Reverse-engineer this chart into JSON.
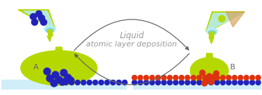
{
  "title_line1": "Liquid",
  "title_line2": "atomic layer deposition",
  "title_color": "#999999",
  "title_fontsize": 8.5,
  "bg_color": "#ffffff",
  "label_A": "A",
  "label_B": "B",
  "label_fontsize": 8,
  "label_color": "#666666",
  "substrate_color": "#d0eef8",
  "green_color": "#b5d800",
  "green_dark": "#8ab000",
  "blue_dot_color": "#2222bb",
  "red_dot_color": "#dd3311",
  "nozzle_light_color": "#b8eef8",
  "nozzle_light2": "#7dd8ec",
  "orange_color": "#d4a055",
  "arrow_color": "#666666",
  "arrow_lw": 1.0
}
